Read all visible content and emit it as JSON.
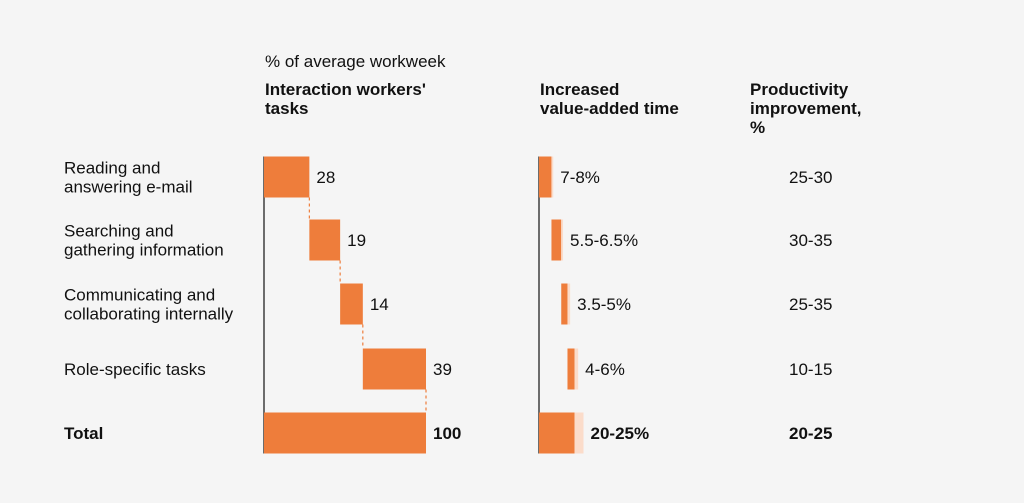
{
  "chart_data": {
    "type": "bar",
    "subtitle": "% of average workweek",
    "headers": {
      "tasks": [
        "Interaction workers'",
        "tasks"
      ],
      "value_added": [
        "Increased",
        "value-added time"
      ],
      "productivity": [
        "Productivity",
        "improvement,",
        "%"
      ]
    },
    "categories": [
      [
        "Reading and",
        "answering e-mail"
      ],
      [
        "Searching and",
        "gathering information"
      ],
      [
        "Communicating and",
        "collaborating internally"
      ],
      [
        "Role-specific tasks"
      ]
    ],
    "task_share": [
      28,
      19,
      14,
      39
    ],
    "task_share_labels": [
      "28",
      "19",
      "14",
      "39"
    ],
    "value_added_low": [
      7,
      5.5,
      3.5,
      4
    ],
    "value_added_high": [
      8,
      6.5,
      5,
      6
    ],
    "value_added_labels": [
      "7-8%",
      "5.5-6.5%",
      "3.5-5%",
      "4-6%"
    ],
    "productivity_labels": [
      "25-30",
      "30-35",
      "25-35",
      "10-15"
    ],
    "total": {
      "label": "Total",
      "task_share": 100,
      "task_share_label": "100",
      "value_added_low": 20,
      "value_added_high": 25,
      "value_added_label": "20-25%",
      "productivity_label": "20-25"
    },
    "colors": {
      "bar": "#ee7d3b",
      "range": "#fbdcca",
      "connector": "#ee7d3b",
      "axis": "#111111"
    }
  }
}
